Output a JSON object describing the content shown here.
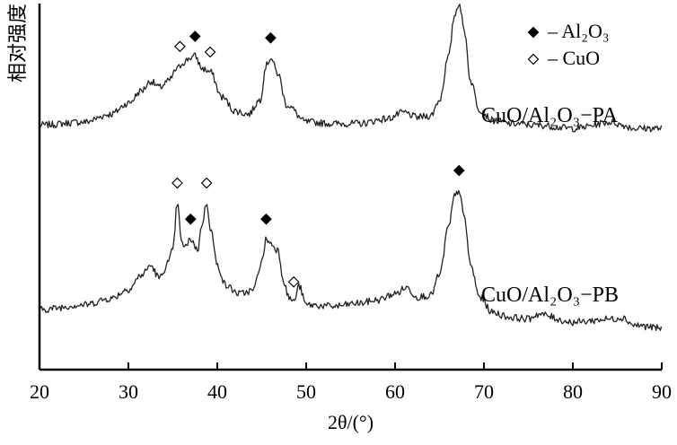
{
  "chart_data": {
    "type": "line",
    "xlabel": "2θ/(°)",
    "ylabel": "相对强度",
    "xlim": [
      20,
      90
    ],
    "xticks": [
      20,
      30,
      40,
      50,
      60,
      70,
      80,
      90
    ],
    "yticks_shown": false,
    "grid": false,
    "legend": {
      "placement": "top-right",
      "entries": [
        {
          "marker": "filled-diamond",
          "label": "Al₂O₃"
        },
        {
          "marker": "open-diamond",
          "label": "CuO"
        }
      ]
    },
    "series": [
      {
        "name": "CuO/Al₂O₃−PA",
        "x": [
          20,
          25,
          28,
          30,
          31.5,
          32.5,
          33.5,
          34.5,
          35.5,
          36.2,
          37,
          37.5,
          38.3,
          39.2,
          40.5,
          42,
          43.5,
          44.8,
          45.5,
          46,
          46.8,
          47.8,
          50,
          53,
          56,
          59,
          61,
          62.5,
          64,
          65,
          66,
          66.7,
          67.2,
          67.8,
          68.5,
          69.5,
          71,
          73,
          76,
          80,
          84.5,
          85.5,
          87,
          90
        ],
        "y": [
          0.02,
          0.04,
          0.09,
          0.16,
          0.24,
          0.3,
          0.26,
          0.3,
          0.38,
          0.42,
          0.45,
          0.46,
          0.38,
          0.36,
          0.2,
          0.11,
          0.09,
          0.18,
          0.4,
          0.45,
          0.35,
          0.15,
          0.04,
          0.03,
          0.03,
          0.06,
          0.1,
          0.07,
          0.08,
          0.18,
          0.45,
          0.72,
          0.8,
          0.62,
          0.3,
          0.12,
          0.05,
          0.03,
          0.02,
          0.0,
          0.04,
          0.02,
          0.0,
          0.0
        ]
      },
      {
        "name": "CuO/Al₂O₃−PB",
        "x": [
          20,
          25,
          28,
          30,
          31.5,
          32.5,
          33.5,
          34.5,
          35,
          35.5,
          36,
          36.5,
          37,
          37.8,
          38.3,
          38.8,
          39.3,
          40,
          41,
          42.5,
          44,
          45,
          45.5,
          46,
          46.8,
          47.5,
          48,
          48.6,
          49.2,
          50,
          53,
          56,
          58,
          60,
          61.3,
          62.5,
          64,
          65,
          66,
          66.7,
          67.2,
          67.8,
          68.5,
          69.5,
          71,
          73,
          75,
          76,
          80,
          84.5,
          85.5,
          87,
          90
        ],
        "y": [
          0.0,
          0.03,
          0.07,
          0.13,
          0.22,
          0.28,
          0.2,
          0.3,
          0.38,
          0.68,
          0.42,
          0.4,
          0.45,
          0.38,
          0.55,
          0.68,
          0.5,
          0.28,
          0.15,
          0.1,
          0.12,
          0.3,
          0.45,
          0.42,
          0.38,
          0.18,
          0.08,
          0.05,
          0.15,
          0.03,
          0.02,
          0.04,
          0.06,
          0.1,
          0.14,
          0.08,
          0.09,
          0.22,
          0.52,
          0.72,
          0.76,
          0.58,
          0.28,
          0.08,
          -0.02,
          -0.05,
          -0.06,
          -0.03,
          -0.08,
          -0.06,
          -0.05,
          -0.1,
          -0.12
        ]
      }
    ],
    "annotations": [
      {
        "series": 0,
        "x": 35.8,
        "marker": "open-diamond"
      },
      {
        "series": 0,
        "x": 37.5,
        "marker": "filled-diamond"
      },
      {
        "series": 0,
        "x": 39.2,
        "marker": "open-diamond"
      },
      {
        "series": 0,
        "x": 46.0,
        "marker": "filled-diamond"
      },
      {
        "series": 0,
        "x": 67.2,
        "marker": "filled-diamond"
      },
      {
        "series": 1,
        "x": 35.5,
        "marker": "open-diamond"
      },
      {
        "series": 1,
        "x": 38.8,
        "marker": "open-diamond"
      },
      {
        "series": 1,
        "x": 37.0,
        "marker": "filled-diamond"
      },
      {
        "series": 1,
        "x": 45.5,
        "marker": "filled-diamond"
      },
      {
        "series": 1,
        "x": 48.6,
        "marker": "open-diamond"
      },
      {
        "series": 1,
        "x": 67.2,
        "marker": "filled-diamond"
      }
    ]
  }
}
